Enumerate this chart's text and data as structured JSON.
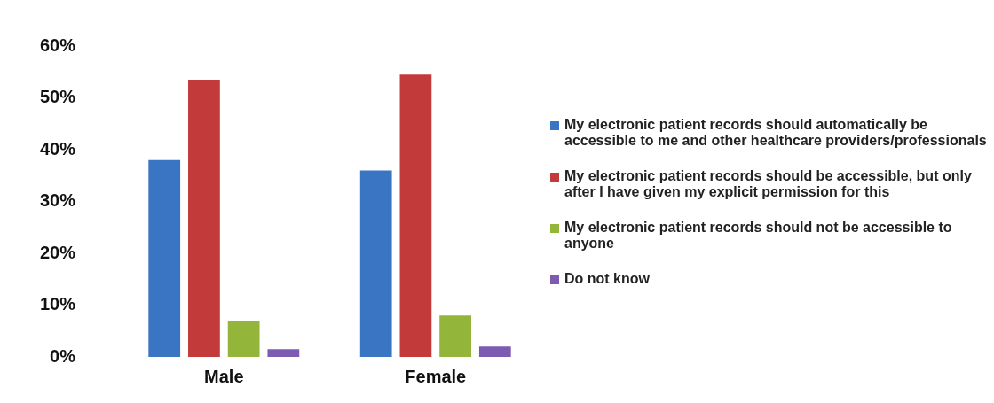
{
  "chart_data": {
    "type": "bar",
    "categories": [
      "Male",
      "Female"
    ],
    "series": [
      {
        "name": " My electronic patient records should automatically be accessible to me and other healthcare providers/professionals",
        "color": "#3a75c4",
        "values": [
          38,
          36
        ]
      },
      {
        "name": "My electronic patient records should be accessible, but only after I have given my explicit permission for this",
        "color": "#c23b3a",
        "values": [
          53.5,
          54.5
        ]
      },
      {
        "name": "My electronic patient records should not be accessible to anyone",
        "color": "#93b53a",
        "values": [
          7,
          8
        ]
      },
      {
        "name": "Do not know",
        "color": "#7d5bb0",
        "values": [
          1.5,
          2
        ]
      }
    ],
    "ylim": [
      0,
      60
    ],
    "yticks": [
      {
        "value": 0,
        "label": "0%"
      },
      {
        "value": 10,
        "label": "10%"
      },
      {
        "value": 20,
        "label": "20%"
      },
      {
        "value": 30,
        "label": "30%"
      },
      {
        "value": 40,
        "label": "40%"
      },
      {
        "value": 50,
        "label": "50%"
      },
      {
        "value": 60,
        "label": "60%"
      }
    ],
    "grid": false,
    "legend": "right"
  }
}
